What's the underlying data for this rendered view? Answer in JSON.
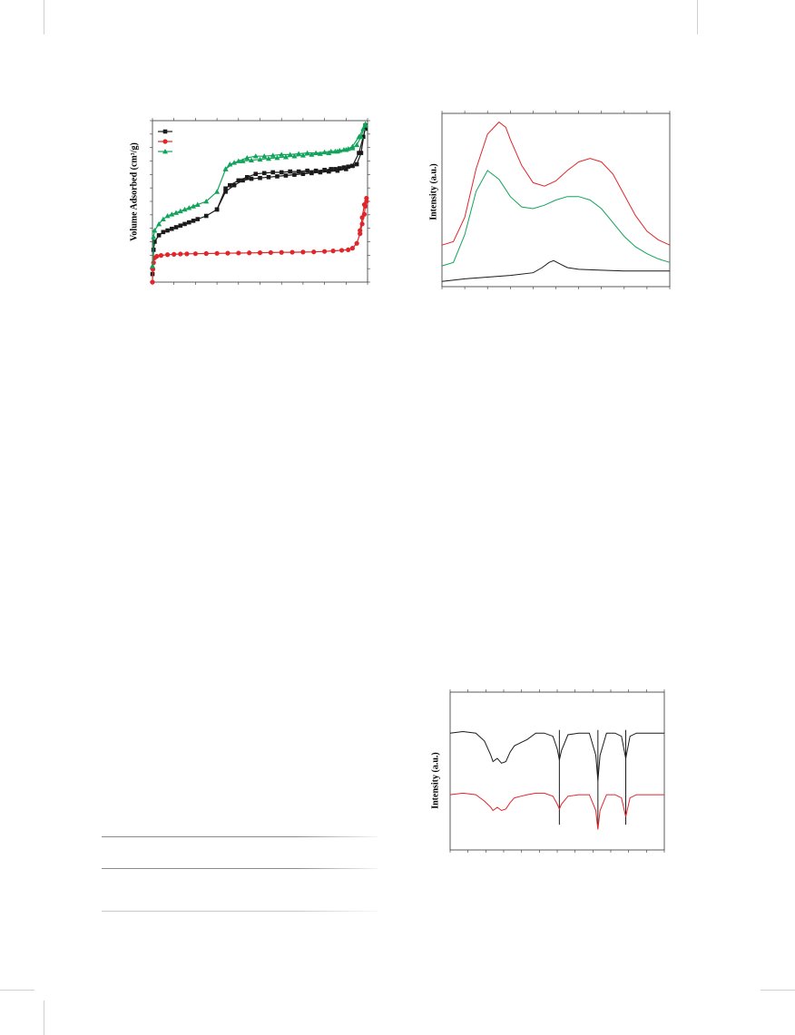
{
  "chart_data": [
    {
      "type": "line",
      "ylabel": "Volume Adsorbed (cm³/g)",
      "xlim": [
        0,
        1
      ],
      "ylim": [
        0,
        1
      ],
      "xticks": 10,
      "yticks": 12,
      "legend": {
        "placement": "top-left",
        "entries": [
          {
            "marker": "square",
            "color": "#1a1a1a"
          },
          {
            "marker": "circle",
            "color": "#e0262b"
          },
          {
            "marker": "triangle",
            "color": "#12a35a"
          }
        ]
      },
      "series": [
        {
          "color": "#1a1a1a",
          "marker": "square",
          "branch": "adsorption",
          "x": [
            0.0,
            0.005,
            0.01,
            0.03,
            0.05,
            0.07,
            0.09,
            0.11,
            0.13,
            0.15,
            0.17,
            0.19,
            0.21,
            0.25,
            0.3,
            0.34,
            0.38,
            0.42,
            0.46,
            0.5,
            0.54,
            0.58,
            0.62,
            0.66,
            0.7,
            0.74,
            0.78,
            0.82,
            0.86,
            0.9,
            0.93,
            0.96,
            0.98,
            0.99
          ],
          "y": [
            0.05,
            0.2,
            0.25,
            0.29,
            0.31,
            0.32,
            0.33,
            0.34,
            0.35,
            0.36,
            0.37,
            0.38,
            0.39,
            0.41,
            0.45,
            0.56,
            0.6,
            0.63,
            0.64,
            0.645,
            0.65,
            0.655,
            0.66,
            0.665,
            0.67,
            0.675,
            0.68,
            0.685,
            0.69,
            0.7,
            0.72,
            0.8,
            0.9,
            0.95
          ]
        },
        {
          "color": "#1a1a1a",
          "marker": "square",
          "branch": "desorption",
          "x": [
            0.99,
            0.97,
            0.95,
            0.93,
            0.91,
            0.89,
            0.87,
            0.85,
            0.83,
            0.8,
            0.76,
            0.72,
            0.68,
            0.64,
            0.6,
            0.56,
            0.52,
            0.48,
            0.44,
            0.4,
            0.36,
            0.34,
            0.3
          ],
          "y": [
            0.97,
            0.8,
            0.73,
            0.72,
            0.715,
            0.71,
            0.705,
            0.7,
            0.7,
            0.695,
            0.69,
            0.69,
            0.685,
            0.685,
            0.68,
            0.68,
            0.675,
            0.67,
            0.65,
            0.63,
            0.6,
            0.58,
            0.45
          ]
        },
        {
          "color": "#e0262b",
          "marker": "circle",
          "branch": "adsorption",
          "x": [
            0.0,
            0.002,
            0.005,
            0.01,
            0.02,
            0.04,
            0.07,
            0.1,
            0.13,
            0.16,
            0.2,
            0.25,
            0.3,
            0.35,
            0.4,
            0.45,
            0.5,
            0.55,
            0.6,
            0.65,
            0.7,
            0.75,
            0.8,
            0.84,
            0.88,
            0.91,
            0.93,
            0.95,
            0.965,
            0.975,
            0.985,
            0.99,
            0.995
          ],
          "y": [
            0.0,
            0.08,
            0.12,
            0.15,
            0.16,
            0.165,
            0.17,
            0.172,
            0.174,
            0.175,
            0.176,
            0.177,
            0.178,
            0.179,
            0.18,
            0.181,
            0.182,
            0.183,
            0.184,
            0.185,
            0.186,
            0.187,
            0.19,
            0.193,
            0.197,
            0.2,
            0.21,
            0.24,
            0.3,
            0.36,
            0.42,
            0.47,
            0.5
          ]
        },
        {
          "color": "#e0262b",
          "marker": "circle",
          "branch": "desorption",
          "x": [
            0.995,
            0.985,
            0.975,
            0.965
          ],
          "y": [
            0.52,
            0.48,
            0.4,
            0.32
          ]
        },
        {
          "color": "#12a35a",
          "marker": "triangle",
          "branch": "adsorption",
          "x": [
            0.0,
            0.005,
            0.01,
            0.03,
            0.05,
            0.07,
            0.09,
            0.11,
            0.13,
            0.15,
            0.17,
            0.19,
            0.21,
            0.25,
            0.3,
            0.34,
            0.38,
            0.42,
            0.46,
            0.5,
            0.54,
            0.58,
            0.62,
            0.66,
            0.7,
            0.74,
            0.78,
            0.82,
            0.86,
            0.9,
            0.93,
            0.96,
            0.98,
            0.99
          ],
          "y": [
            0.1,
            0.28,
            0.32,
            0.36,
            0.39,
            0.41,
            0.42,
            0.43,
            0.44,
            0.45,
            0.46,
            0.47,
            0.48,
            0.5,
            0.56,
            0.7,
            0.74,
            0.75,
            0.755,
            0.76,
            0.765,
            0.77,
            0.775,
            0.78,
            0.785,
            0.79,
            0.795,
            0.8,
            0.81,
            0.82,
            0.84,
            0.9,
            0.95,
            0.97
          ]
        },
        {
          "color": "#12a35a",
          "marker": "triangle",
          "branch": "desorption",
          "x": [
            0.99,
            0.97,
            0.95,
            0.93,
            0.91,
            0.89,
            0.87,
            0.85,
            0.83,
            0.8,
            0.76,
            0.72,
            0.68,
            0.64,
            0.6,
            0.56,
            0.52,
            0.48,
            0.44,
            0.4,
            0.36,
            0.34
          ],
          "y": [
            0.98,
            0.9,
            0.85,
            0.83,
            0.825,
            0.82,
            0.815,
            0.81,
            0.81,
            0.805,
            0.8,
            0.8,
            0.795,
            0.79,
            0.79,
            0.785,
            0.78,
            0.78,
            0.77,
            0.75,
            0.73,
            0.7
          ]
        }
      ]
    },
    {
      "type": "line",
      "ylabel": "Intensity (a.u.)",
      "xlim": [
        0,
        1
      ],
      "ylim": [
        0,
        1
      ],
      "xticks": 10,
      "series": [
        {
          "color": "#e0262b",
          "x": [
            0.0,
            0.05,
            0.1,
            0.15,
            0.2,
            0.25,
            0.28,
            0.3,
            0.35,
            0.4,
            0.45,
            0.5,
            0.55,
            0.6,
            0.65,
            0.7,
            0.75,
            0.8,
            0.85,
            0.9,
            0.95,
            1.0
          ],
          "y": [
            0.24,
            0.26,
            0.4,
            0.68,
            0.88,
            0.95,
            0.92,
            0.85,
            0.7,
            0.6,
            0.58,
            0.61,
            0.67,
            0.72,
            0.74,
            0.72,
            0.65,
            0.53,
            0.41,
            0.32,
            0.27,
            0.24
          ]
        },
        {
          "color": "#12a35a",
          "x": [
            0.0,
            0.05,
            0.1,
            0.15,
            0.2,
            0.25,
            0.3,
            0.35,
            0.4,
            0.45,
            0.5,
            0.55,
            0.6,
            0.65,
            0.7,
            0.75,
            0.8,
            0.85,
            0.9,
            0.95,
            1.0
          ],
          "y": [
            0.12,
            0.14,
            0.3,
            0.55,
            0.67,
            0.62,
            0.52,
            0.46,
            0.45,
            0.47,
            0.5,
            0.52,
            0.52,
            0.5,
            0.45,
            0.37,
            0.29,
            0.23,
            0.19,
            0.16,
            0.14
          ]
        },
        {
          "color": "#1a1a1a",
          "x": [
            0.0,
            0.1,
            0.2,
            0.3,
            0.4,
            0.44,
            0.47,
            0.49,
            0.52,
            0.55,
            0.6,
            0.7,
            0.8,
            0.9,
            1.0
          ],
          "y": [
            0.03,
            0.045,
            0.055,
            0.065,
            0.08,
            0.11,
            0.14,
            0.15,
            0.13,
            0.11,
            0.1,
            0.095,
            0.09,
            0.09,
            0.09
          ]
        }
      ]
    },
    {
      "type": "line",
      "ylabel": "Intensity (a.u.)",
      "xlim": [
        0,
        1
      ],
      "ylim": [
        0,
        1
      ],
      "xticks": 12,
      "markers_x": [
        0.51,
        0.69,
        0.82
      ],
      "series": [
        {
          "color": "#1a1a1a",
          "x": [
            0.0,
            0.06,
            0.12,
            0.16,
            0.19,
            0.2,
            0.22,
            0.24,
            0.26,
            0.28,
            0.3,
            0.33,
            0.36,
            0.4,
            0.44,
            0.48,
            0.5,
            0.51,
            0.52,
            0.55,
            0.6,
            0.65,
            0.68,
            0.69,
            0.7,
            0.73,
            0.77,
            0.8,
            0.82,
            0.84,
            0.87,
            0.92,
            1.0
          ],
          "y": [
            0.74,
            0.75,
            0.74,
            0.69,
            0.6,
            0.56,
            0.58,
            0.55,
            0.56,
            0.62,
            0.66,
            0.68,
            0.7,
            0.74,
            0.74,
            0.72,
            0.64,
            0.57,
            0.63,
            0.73,
            0.74,
            0.74,
            0.6,
            0.44,
            0.6,
            0.74,
            0.74,
            0.72,
            0.58,
            0.72,
            0.74,
            0.74,
            0.74
          ]
        },
        {
          "color": "#e0262b",
          "x": [
            0.0,
            0.06,
            0.12,
            0.16,
            0.19,
            0.2,
            0.22,
            0.24,
            0.26,
            0.28,
            0.3,
            0.33,
            0.36,
            0.4,
            0.44,
            0.48,
            0.5,
            0.51,
            0.52,
            0.55,
            0.6,
            0.65,
            0.68,
            0.69,
            0.7,
            0.73,
            0.77,
            0.8,
            0.82,
            0.84,
            0.87,
            0.92,
            1.0
          ],
          "y": [
            0.35,
            0.36,
            0.35,
            0.31,
            0.27,
            0.25,
            0.27,
            0.25,
            0.26,
            0.3,
            0.33,
            0.34,
            0.35,
            0.36,
            0.36,
            0.34,
            0.29,
            0.26,
            0.29,
            0.34,
            0.35,
            0.35,
            0.25,
            0.13,
            0.25,
            0.35,
            0.35,
            0.33,
            0.21,
            0.33,
            0.35,
            0.35,
            0.35
          ]
        }
      ]
    }
  ]
}
